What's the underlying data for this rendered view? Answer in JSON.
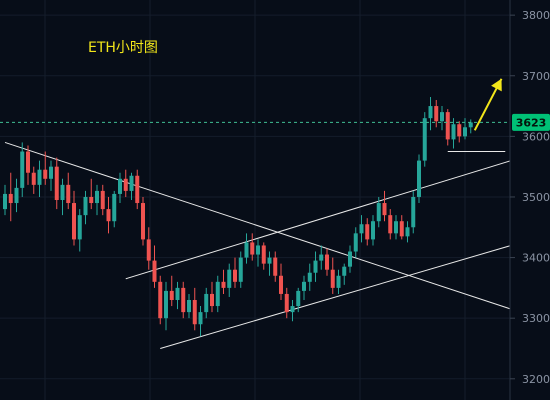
{
  "chart_data": {
    "type": "candlestick",
    "title": "ETH小时图",
    "ylim": [
      3165,
      3825
    ],
    "y_ticks": [
      3200,
      3300,
      3400,
      3500,
      3600,
      3700,
      3800
    ],
    "y_tick_labels": [
      "3200",
      "3300",
      "3400",
      "3500",
      "3600",
      "3700",
      "3800"
    ],
    "current_price": 3623,
    "current_price_label": "3623",
    "grid": true,
    "colors": {
      "up": "#26a69a",
      "down": "#ef5350",
      "background": "#070d18",
      "title": "#f2e61a",
      "arrow": "#f2e61a",
      "price_tag": "#00c176",
      "trendline": "#e8e8e8"
    },
    "candles": [
      {
        "o": 3480,
        "h": 3520,
        "l": 3470,
        "c": 3505
      },
      {
        "o": 3505,
        "h": 3540,
        "l": 3460,
        "c": 3490
      },
      {
        "o": 3490,
        "h": 3530,
        "l": 3475,
        "c": 3515
      },
      {
        "o": 3515,
        "h": 3590,
        "l": 3500,
        "c": 3575
      },
      {
        "o": 3575,
        "h": 3585,
        "l": 3520,
        "c": 3540
      },
      {
        "o": 3540,
        "h": 3550,
        "l": 3505,
        "c": 3520
      },
      {
        "o": 3520,
        "h": 3560,
        "l": 3500,
        "c": 3545
      },
      {
        "o": 3545,
        "h": 3575,
        "l": 3520,
        "c": 3530
      },
      {
        "o": 3530,
        "h": 3560,
        "l": 3510,
        "c": 3550
      },
      {
        "o": 3550,
        "h": 3565,
        "l": 3480,
        "c": 3495
      },
      {
        "o": 3495,
        "h": 3530,
        "l": 3470,
        "c": 3520
      },
      {
        "o": 3520,
        "h": 3540,
        "l": 3480,
        "c": 3490
      },
      {
        "o": 3490,
        "h": 3510,
        "l": 3420,
        "c": 3430
      },
      {
        "o": 3430,
        "h": 3480,
        "l": 3410,
        "c": 3470
      },
      {
        "o": 3470,
        "h": 3510,
        "l": 3455,
        "c": 3500
      },
      {
        "o": 3500,
        "h": 3530,
        "l": 3480,
        "c": 3490
      },
      {
        "o": 3490,
        "h": 3520,
        "l": 3470,
        "c": 3510
      },
      {
        "o": 3510,
        "h": 3520,
        "l": 3470,
        "c": 3480
      },
      {
        "o": 3480,
        "h": 3500,
        "l": 3440,
        "c": 3460
      },
      {
        "o": 3460,
        "h": 3510,
        "l": 3450,
        "c": 3505
      },
      {
        "o": 3505,
        "h": 3540,
        "l": 3490,
        "c": 3530
      },
      {
        "o": 3530,
        "h": 3545,
        "l": 3500,
        "c": 3510
      },
      {
        "o": 3510,
        "h": 3540,
        "l": 3495,
        "c": 3535
      },
      {
        "o": 3535,
        "h": 3545,
        "l": 3480,
        "c": 3490
      },
      {
        "o": 3490,
        "h": 3500,
        "l": 3420,
        "c": 3430
      },
      {
        "o": 3430,
        "h": 3450,
        "l": 3380,
        "c": 3395
      },
      {
        "o": 3395,
        "h": 3420,
        "l": 3350,
        "c": 3360
      },
      {
        "o": 3360,
        "h": 3370,
        "l": 3290,
        "c": 3300
      },
      {
        "o": 3300,
        "h": 3360,
        "l": 3280,
        "c": 3345
      },
      {
        "o": 3345,
        "h": 3370,
        "l": 3320,
        "c": 3330
      },
      {
        "o": 3330,
        "h": 3360,
        "l": 3315,
        "c": 3350
      },
      {
        "o": 3350,
        "h": 3360,
        "l": 3300,
        "c": 3310
      },
      {
        "o": 3310,
        "h": 3340,
        "l": 3300,
        "c": 3330
      },
      {
        "o": 3330,
        "h": 3350,
        "l": 3280,
        "c": 3290
      },
      {
        "o": 3290,
        "h": 3320,
        "l": 3270,
        "c": 3310
      },
      {
        "o": 3310,
        "h": 3350,
        "l": 3300,
        "c": 3340
      },
      {
        "o": 3340,
        "h": 3360,
        "l": 3310,
        "c": 3320
      },
      {
        "o": 3320,
        "h": 3370,
        "l": 3310,
        "c": 3360
      },
      {
        "o": 3360,
        "h": 3380,
        "l": 3340,
        "c": 3350
      },
      {
        "o": 3350,
        "h": 3390,
        "l": 3335,
        "c": 3380
      },
      {
        "o": 3380,
        "h": 3400,
        "l": 3350,
        "c": 3360
      },
      {
        "o": 3360,
        "h": 3410,
        "l": 3350,
        "c": 3400
      },
      {
        "o": 3400,
        "h": 3440,
        "l": 3390,
        "c": 3425
      },
      {
        "o": 3425,
        "h": 3440,
        "l": 3395,
        "c": 3405
      },
      {
        "o": 3405,
        "h": 3430,
        "l": 3385,
        "c": 3420
      },
      {
        "o": 3420,
        "h": 3425,
        "l": 3380,
        "c": 3390
      },
      {
        "o": 3390,
        "h": 3410,
        "l": 3370,
        "c": 3400
      },
      {
        "o": 3400,
        "h": 3410,
        "l": 3360,
        "c": 3370
      },
      {
        "o": 3370,
        "h": 3390,
        "l": 3330,
        "c": 3340
      },
      {
        "o": 3340,
        "h": 3350,
        "l": 3300,
        "c": 3310
      },
      {
        "o": 3310,
        "h": 3330,
        "l": 3295,
        "c": 3320
      },
      {
        "o": 3320,
        "h": 3350,
        "l": 3310,
        "c": 3345
      },
      {
        "o": 3345,
        "h": 3370,
        "l": 3330,
        "c": 3360
      },
      {
        "o": 3360,
        "h": 3390,
        "l": 3345,
        "c": 3375
      },
      {
        "o": 3375,
        "h": 3410,
        "l": 3360,
        "c": 3395
      },
      {
        "o": 3395,
        "h": 3420,
        "l": 3380,
        "c": 3405
      },
      {
        "o": 3405,
        "h": 3415,
        "l": 3370,
        "c": 3380
      },
      {
        "o": 3380,
        "h": 3400,
        "l": 3340,
        "c": 3350
      },
      {
        "o": 3350,
        "h": 3380,
        "l": 3340,
        "c": 3370
      },
      {
        "o": 3370,
        "h": 3390,
        "l": 3355,
        "c": 3385
      },
      {
        "o": 3385,
        "h": 3420,
        "l": 3375,
        "c": 3410
      },
      {
        "o": 3410,
        "h": 3450,
        "l": 3400,
        "c": 3440
      },
      {
        "o": 3440,
        "h": 3470,
        "l": 3425,
        "c": 3455
      },
      {
        "o": 3455,
        "h": 3465,
        "l": 3420,
        "c": 3430
      },
      {
        "o": 3430,
        "h": 3470,
        "l": 3420,
        "c": 3460
      },
      {
        "o": 3460,
        "h": 3500,
        "l": 3450,
        "c": 3490
      },
      {
        "o": 3490,
        "h": 3510,
        "l": 3460,
        "c": 3470
      },
      {
        "o": 3470,
        "h": 3480,
        "l": 3430,
        "c": 3440
      },
      {
        "o": 3440,
        "h": 3470,
        "l": 3430,
        "c": 3460
      },
      {
        "o": 3460,
        "h": 3470,
        "l": 3430,
        "c": 3435
      },
      {
        "o": 3435,
        "h": 3460,
        "l": 3425,
        "c": 3450
      },
      {
        "o": 3450,
        "h": 3510,
        "l": 3440,
        "c": 3500
      },
      {
        "o": 3500,
        "h": 3570,
        "l": 3490,
        "c": 3560
      },
      {
        "o": 3560,
        "h": 3640,
        "l": 3550,
        "c": 3630
      },
      {
        "o": 3630,
        "h": 3665,
        "l": 3610,
        "c": 3650
      },
      {
        "o": 3650,
        "h": 3660,
        "l": 3615,
        "c": 3625
      },
      {
        "o": 3625,
        "h": 3650,
        "l": 3610,
        "c": 3640
      },
      {
        "o": 3640,
        "h": 3645,
        "l": 3585,
        "c": 3595
      },
      {
        "o": 3595,
        "h": 3630,
        "l": 3580,
        "c": 3620
      },
      {
        "o": 3620,
        "h": 3625,
        "l": 3590,
        "c": 3600
      },
      {
        "o": 3600,
        "h": 3630,
        "l": 3595,
        "c": 3615
      },
      {
        "o": 3615,
        "h": 3628,
        "l": 3605,
        "c": 3623
      }
    ],
    "trendlines": [
      {
        "p1": [
          0,
          3590
        ],
        "p2": [
          88,
          3315
        ]
      },
      {
        "p1": [
          21,
          3365
        ],
        "p2": [
          88,
          3560
        ]
      },
      {
        "p1": [
          27,
          3250
        ],
        "p2": [
          88,
          3420
        ]
      },
      {
        "p1": [
          77,
          3575
        ],
        "p2": [
          87,
          3575
        ]
      }
    ]
  }
}
